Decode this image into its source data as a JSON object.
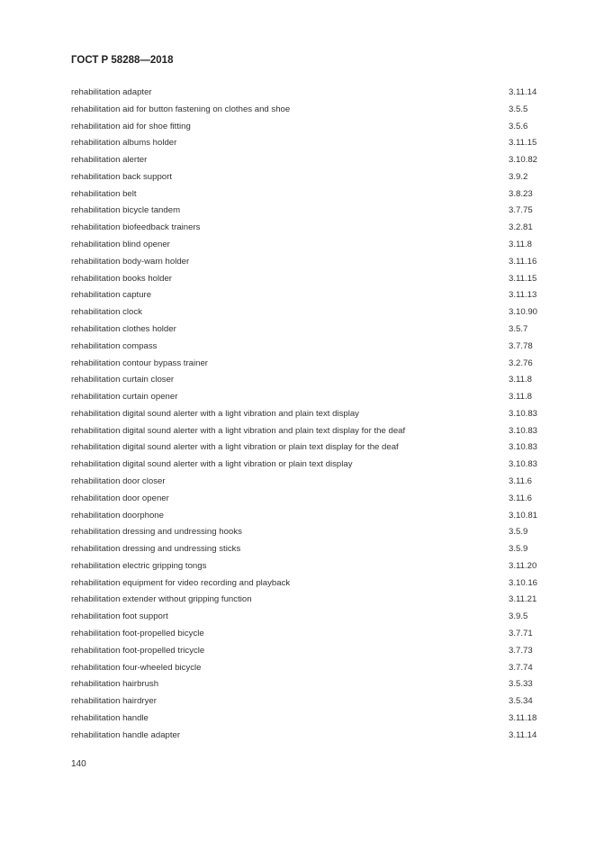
{
  "header": {
    "title": "ГОСТ Р 58288—2018"
  },
  "entries": [
    {
      "term": "rehabilitation adapter",
      "ref": "3.11.14"
    },
    {
      "term": "rehabilitation aid for button fastening on clothes and shoe",
      "ref": "3.5.5"
    },
    {
      "term": "rehabilitation aid for shoe fitting",
      "ref": "3.5.6"
    },
    {
      "term": "rehabilitation albums holder",
      "ref": "3.11.15"
    },
    {
      "term": "rehabilitation alerter",
      "ref": "3.10.82"
    },
    {
      "term": "rehabilitation back support",
      "ref": "3.9.2"
    },
    {
      "term": "rehabilitation belt",
      "ref": "3.8.23"
    },
    {
      "term": "rehabilitation bicycle tandem",
      "ref": "3.7.75"
    },
    {
      "term": "rehabilitation biofeedback trainers",
      "ref": "3.2.81"
    },
    {
      "term": "rehabilitation blind opener",
      "ref": "3.11.8"
    },
    {
      "term": "rehabilitation body-warn holder",
      "ref": "3.11.16"
    },
    {
      "term": "rehabilitation books holder",
      "ref": "3.11.15"
    },
    {
      "term": "rehabilitation capture",
      "ref": "3.11.13"
    },
    {
      "term": "rehabilitation clock",
      "ref": "3.10.90"
    },
    {
      "term": "rehabilitation clothes holder",
      "ref": "3.5.7"
    },
    {
      "term": "rehabilitation compass",
      "ref": "3.7.78"
    },
    {
      "term": "rehabilitation contour bypass trainer",
      "ref": "3.2.76"
    },
    {
      "term": "rehabilitation curtain closer",
      "ref": "3.11.8"
    },
    {
      "term": "rehabilitation curtain opener",
      "ref": "3.11.8"
    },
    {
      "term": "rehabilitation digital sound alerter with a light vibration and plain text display",
      "ref": "3.10.83"
    },
    {
      "term": "rehabilitation digital sound alerter with a light vibration and plain text display for the deaf",
      "ref": "3.10.83"
    },
    {
      "term": "rehabilitation digital sound alerter with a light vibration or plain text display for the deaf",
      "ref": "3.10.83"
    },
    {
      "term": "rehabilitation digital sound alerter with a light vibration or plain text display",
      "ref": "3.10.83"
    },
    {
      "term": "rehabilitation door closer",
      "ref": "3.11.6"
    },
    {
      "term": "rehabilitation door opener",
      "ref": "3.11.6"
    },
    {
      "term": "rehabilitation doorphone",
      "ref": "3.10.81"
    },
    {
      "term": "rehabilitation dressing and undressing hooks",
      "ref": "3.5.9"
    },
    {
      "term": "rehabilitation dressing and undressing sticks",
      "ref": "3.5.9"
    },
    {
      "term": "rehabilitation electric gripping tongs",
      "ref": "3.11.20"
    },
    {
      "term": "rehabilitation equipment for video recording and playback",
      "ref": "3.10.16"
    },
    {
      "term": "rehabilitation extender without gripping function",
      "ref": "3.11.21"
    },
    {
      "term": "rehabilitation foot support",
      "ref": "3.9.5"
    },
    {
      "term": "rehabilitation foot-propelled bicycle",
      "ref": "3.7.71"
    },
    {
      "term": "rehabilitation foot-propelled tricycle",
      "ref": "3.7.73"
    },
    {
      "term": "rehabilitation four-wheeled bicycle",
      "ref": "3.7.74"
    },
    {
      "term": "rehabilitation hairbrush",
      "ref": "3.5.33"
    },
    {
      "term": "rehabilitation hairdryer",
      "ref": "3.5.34"
    },
    {
      "term": "rehabilitation handle",
      "ref": "3.11.18"
    },
    {
      "term": "rehabilitation handle adapter",
      "ref": "3.11.14"
    }
  ],
  "footer": {
    "page_number": "140"
  }
}
